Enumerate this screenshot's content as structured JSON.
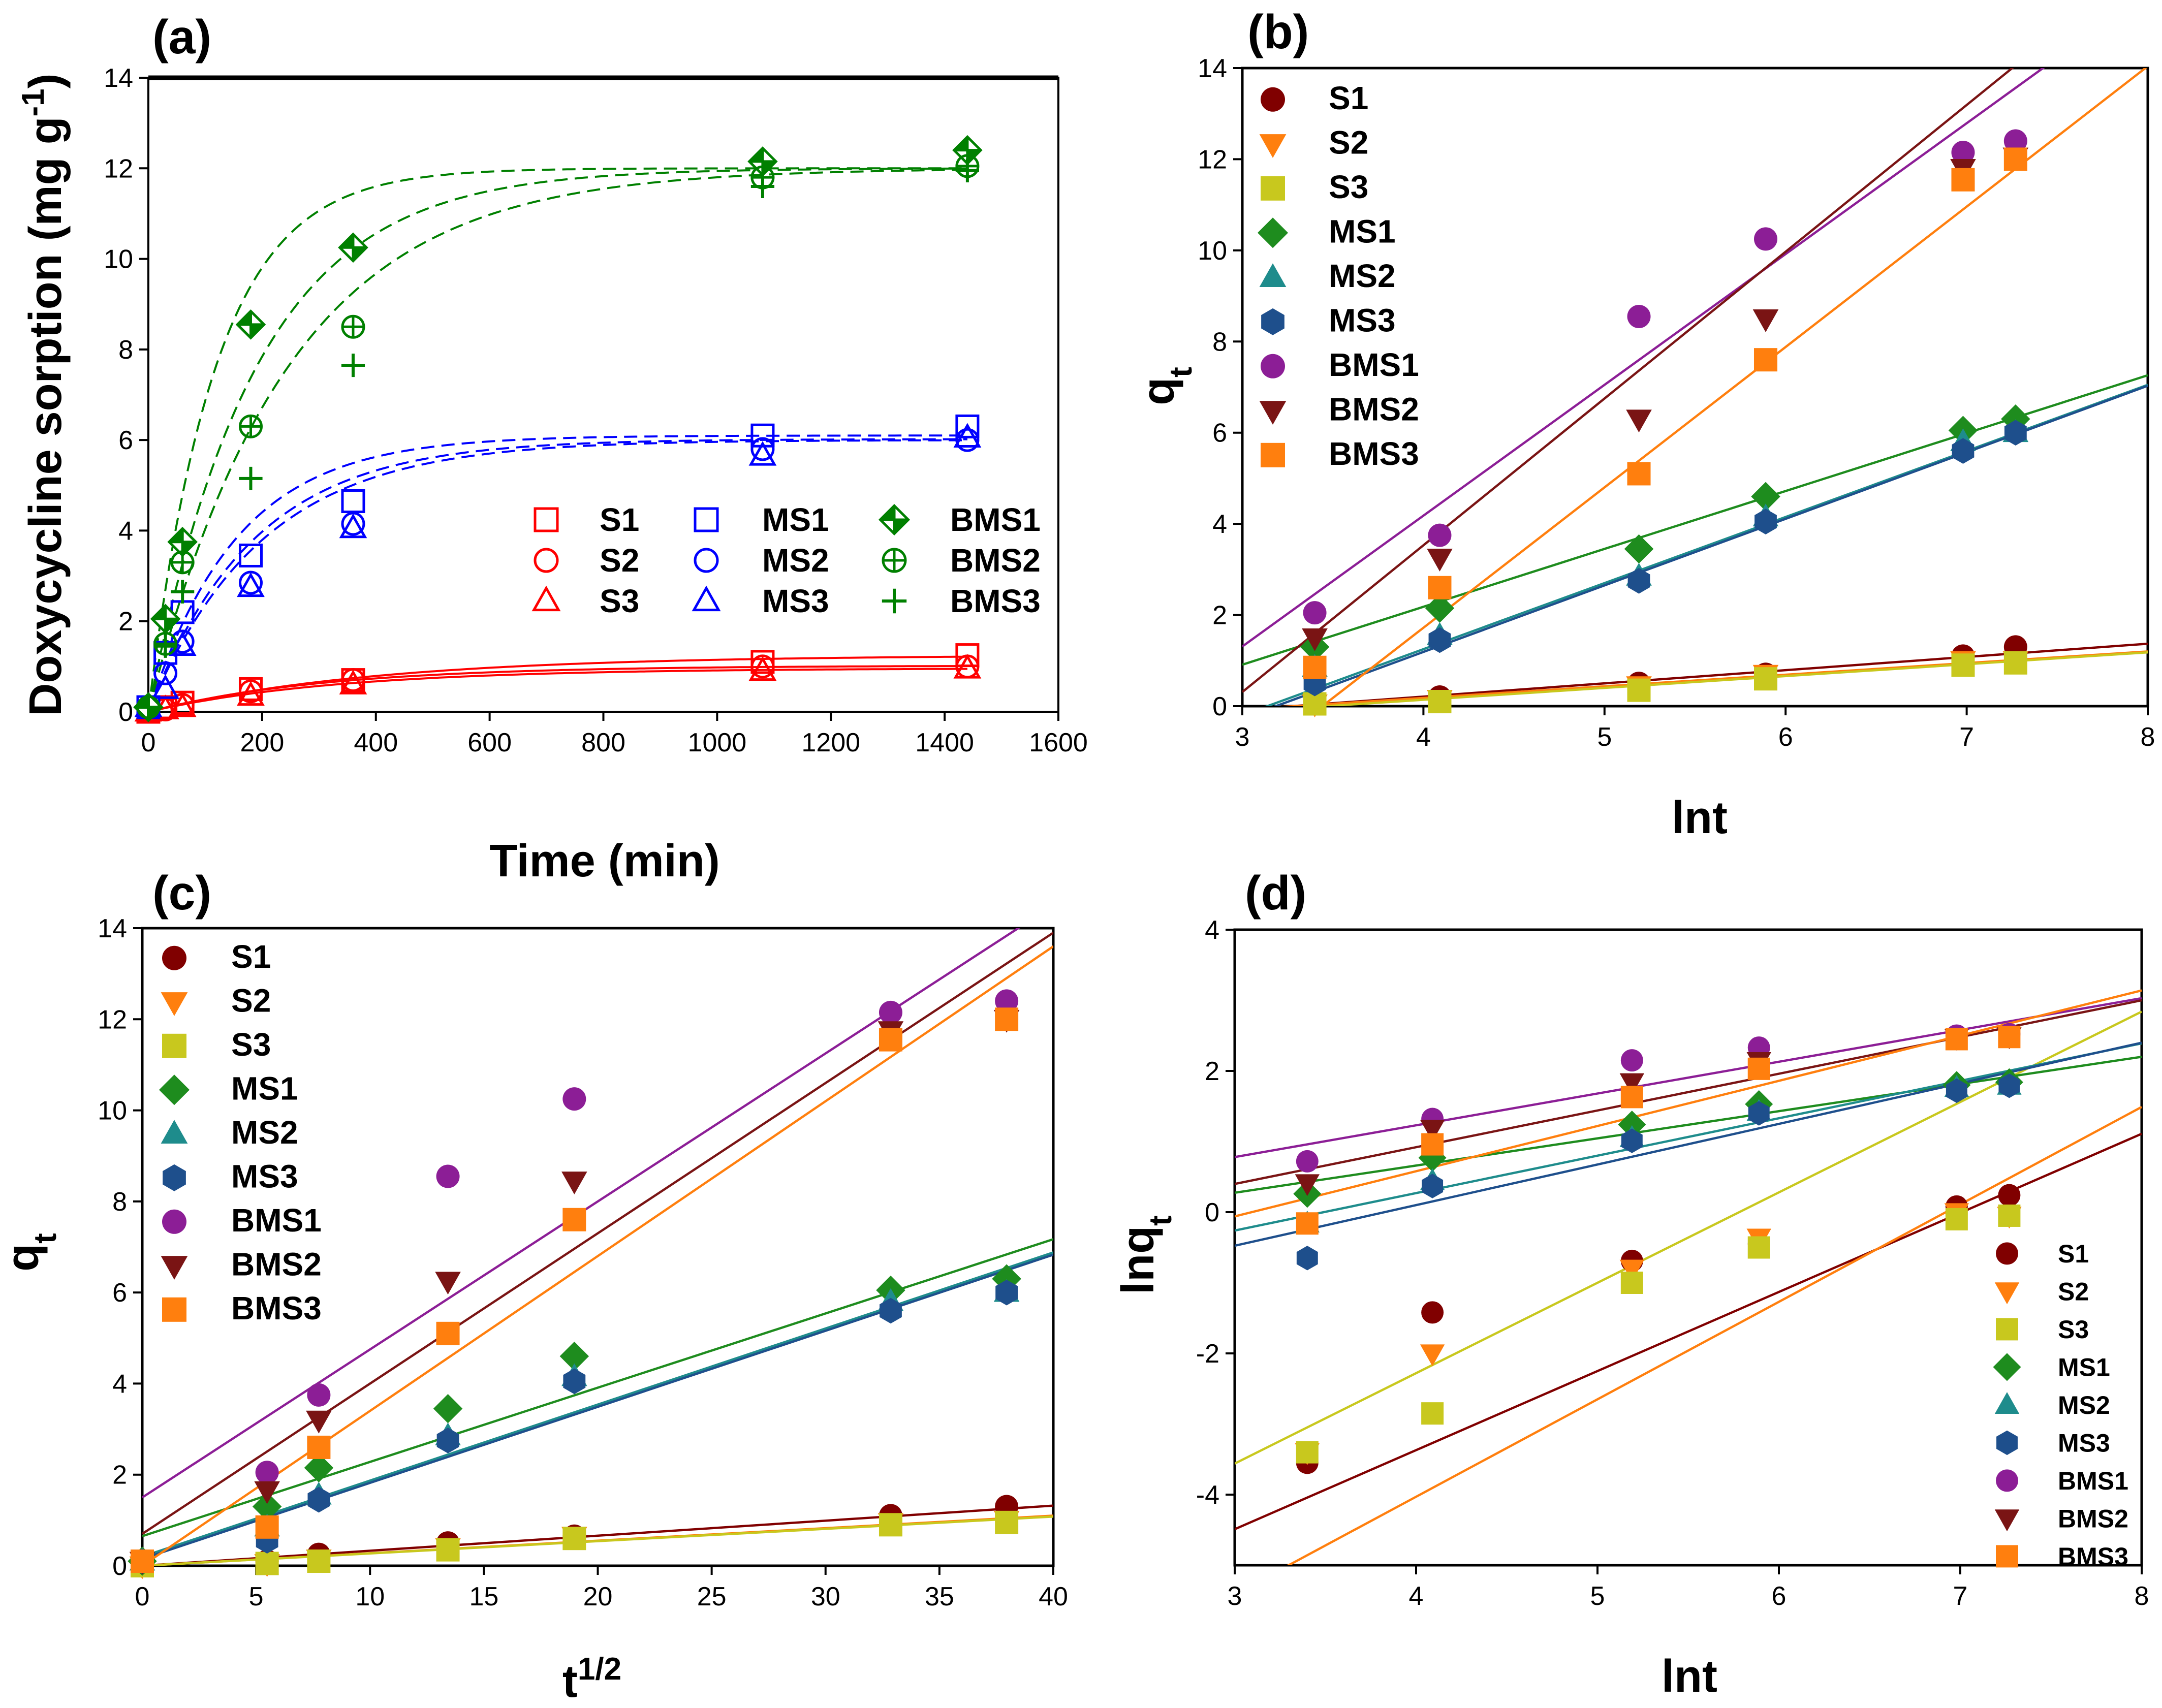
{
  "colors": {
    "S1": "#800000",
    "S2": "#ff7f0e",
    "S3": "#c8c81e",
    "MS1": "#1e8c1e",
    "MS2": "#1e8c8c",
    "MS3": "#1e4f8c",
    "BMS1": "#8c1e96",
    "BMS2": "#7a1414",
    "BMS3": "#ff7f0e",
    "red": "#ff0000",
    "blue": "#0000ff",
    "green": "#008000"
  },
  "chart_data": [
    {
      "panel": "(a)",
      "type": "scatter",
      "xlabel": "Time (min)",
      "ylabel_main": "Doxycycline sorption (mg g",
      "ylabel_sup": "-1",
      "ylabel_end": ")",
      "xlim": [
        0,
        1600
      ],
      "ylim": [
        0,
        14
      ],
      "xticks": [
        0,
        200,
        400,
        600,
        800,
        1000,
        1200,
        1400,
        1600
      ],
      "yticks": [
        0,
        2,
        4,
        6,
        8,
        10,
        12,
        14
      ],
      "legend_position": "lower-right",
      "x": [
        0,
        30,
        60,
        180,
        360,
        1080,
        1440
      ],
      "series": [
        {
          "name": "S1",
          "color": "red",
          "marker": "square",
          "values": [
            0.0,
            0.1,
            0.2,
            0.5,
            0.7,
            1.1,
            1.25
          ],
          "fit": {
            "qe": 1.25,
            "k": 0.0025
          }
        },
        {
          "name": "S2",
          "color": "red",
          "marker": "circle",
          "values": [
            0.0,
            0.05,
            0.15,
            0.45,
            0.7,
            1.0,
            1.0
          ],
          "fit": {
            "qe": 1.02,
            "k": 0.0032
          }
        },
        {
          "name": "S3",
          "color": "red",
          "marker": "triangle",
          "values": [
            0.0,
            0.05,
            0.1,
            0.35,
            0.6,
            0.9,
            0.95
          ],
          "fit": {
            "qe": 0.96,
            "k": 0.003
          }
        },
        {
          "name": "MS1",
          "color": "blue",
          "marker": "square",
          "values": [
            0.1,
            1.3,
            2.2,
            3.45,
            4.65,
            6.1,
            6.3
          ],
          "fit": {
            "qe": 6.1,
            "k": 0.0064
          }
        },
        {
          "name": "MS2",
          "color": "blue",
          "marker": "circle",
          "values": [
            0.1,
            0.85,
            1.55,
            2.85,
            4.15,
            5.8,
            6.0
          ],
          "fit": {
            "qe": 6.02,
            "k": 0.0054
          }
        },
        {
          "name": "MS3",
          "color": "blue",
          "marker": "triangle",
          "values": [
            0.1,
            0.5,
            1.45,
            2.75,
            4.05,
            5.65,
            6.05
          ],
          "fit": {
            "qe": 6.0,
            "k": 0.005
          }
        },
        {
          "name": "BMS1",
          "color": "green",
          "marker": "diamond",
          "values": [
            0.1,
            2.05,
            3.75,
            8.55,
            10.25,
            12.15,
            12.4
          ],
          "fit": {
            "qe": 12.0,
            "k": 0.0085
          }
        },
        {
          "name": "BMS2",
          "color": "green",
          "marker": "circlecross",
          "values": [
            0.1,
            1.5,
            3.3,
            6.3,
            8.5,
            11.8,
            12.05
          ],
          "fit": {
            "qe": 12.0,
            "k": 0.0053
          }
        },
        {
          "name": "BMS3",
          "color": "green",
          "marker": "plus",
          "values": [
            0.1,
            1.45,
            2.65,
            5.15,
            7.65,
            11.6,
            11.95
          ],
          "fit": {
            "qe": 12.0,
            "k": 0.0041
          }
        }
      ]
    },
    {
      "panel": "(b)",
      "type": "scatter",
      "xlabel": "lnt",
      "ylabel_main": "q",
      "ylabel_sub": "t",
      "xlim": [
        3,
        8
      ],
      "ylim": [
        0,
        14
      ],
      "xticks": [
        3,
        4,
        5,
        6,
        7,
        8
      ],
      "yticks": [
        0,
        2,
        4,
        6,
        8,
        10,
        12,
        14
      ],
      "legend_position": "top-left",
      "x": [
        3.4,
        4.09,
        5.19,
        5.89,
        6.98,
        7.27
      ],
      "series": [
        {
          "name": "S1",
          "color": "S1",
          "marker": "circle",
          "values": [
            0.1,
            0.2,
            0.5,
            0.7,
            1.1,
            1.3
          ],
          "fit": [
            -0.95,
            0.29
          ]
        },
        {
          "name": "S2",
          "color": "S2",
          "marker": "tridown",
          "values": [
            0.05,
            0.15,
            0.45,
            0.7,
            1.0,
            1.0
          ],
          "fit": [
            -0.84,
            0.255
          ]
        },
        {
          "name": "S3",
          "color": "S3",
          "marker": "square",
          "values": [
            0.05,
            0.1,
            0.35,
            0.6,
            0.9,
            0.95
          ],
          "fit": [
            -0.9,
            0.26
          ]
        },
        {
          "name": "MS1",
          "color": "MS1",
          "marker": "diamond",
          "values": [
            1.3,
            2.15,
            3.45,
            4.6,
            6.05,
            6.3
          ],
          "fit": [
            -2.9,
            1.27
          ]
        },
        {
          "name": "MS2",
          "color": "MS2",
          "marker": "triangle",
          "values": [
            0.85,
            1.55,
            2.85,
            4.15,
            5.8,
            6.0
          ],
          "fit": [
            -4.55,
            1.45
          ]
        },
        {
          "name": "MS3",
          "color": "MS3",
          "marker": "hexagon",
          "values": [
            0.5,
            1.45,
            2.75,
            4.05,
            5.6,
            6.0
          ],
          "fit": [
            -4.65,
            1.46
          ]
        },
        {
          "name": "BMS1",
          "color": "BMS1",
          "marker": "circle",
          "values": [
            2.05,
            3.75,
            8.55,
            10.25,
            12.15,
            12.4
          ],
          "fit": [
            -7.3,
            2.87
          ]
        },
        {
          "name": "BMS2",
          "color": "BMS2",
          "marker": "tridown",
          "values": [
            1.5,
            3.25,
            6.3,
            8.5,
            11.8,
            12.05
          ],
          "fit": [
            -9.35,
            3.22
          ]
        },
        {
          "name": "BMS3",
          "color": "BMS3",
          "marker": "square",
          "values": [
            0.85,
            2.6,
            5.1,
            7.6,
            11.55,
            12.0
          ],
          "fit": [
            -10.6,
            3.08
          ]
        }
      ]
    },
    {
      "panel": "(c)",
      "type": "scatter",
      "xlabel_main": "t",
      "xlabel_sup": "1/2",
      "ylabel_main": "q",
      "ylabel_sub": "t",
      "xlim": [
        0,
        40
      ],
      "ylim": [
        0,
        14
      ],
      "xticks": [
        0,
        5,
        10,
        15,
        20,
        25,
        30,
        35,
        40
      ],
      "yticks": [
        0,
        2,
        4,
        6,
        8,
        10,
        12,
        14
      ],
      "legend_position": "top-left",
      "x": [
        0,
        5.48,
        7.75,
        13.42,
        18.97,
        32.86,
        37.95
      ],
      "series": [
        {
          "name": "S1",
          "color": "S1",
          "marker": "circle",
          "values": [
            0.0,
            0.1,
            0.25,
            0.5,
            0.65,
            1.1,
            1.3
          ],
          "fit": [
            0.0,
            0.033
          ]
        },
        {
          "name": "S2",
          "color": "S2",
          "marker": "tridown",
          "values": [
            0.0,
            0.05,
            0.15,
            0.4,
            0.65,
            0.95,
            1.0
          ],
          "fit": [
            0.0,
            0.0275
          ]
        },
        {
          "name": "S3",
          "color": "S3",
          "marker": "square",
          "values": [
            0.0,
            0.05,
            0.1,
            0.35,
            0.6,
            0.9,
            0.95
          ],
          "fit": [
            0.0,
            0.027
          ]
        },
        {
          "name": "MS1",
          "color": "MS1",
          "marker": "diamond",
          "values": [
            0.1,
            1.3,
            2.15,
            3.45,
            4.6,
            6.05,
            6.3
          ],
          "fit": [
            0.65,
            0.163
          ]
        },
        {
          "name": "MS2",
          "color": "MS2",
          "marker": "triangle",
          "values": [
            0.1,
            0.85,
            1.55,
            2.85,
            4.15,
            5.8,
            6.0
          ],
          "fit": [
            0.2,
            0.167
          ]
        },
        {
          "name": "MS3",
          "color": "MS3",
          "marker": "hexagon",
          "values": [
            0.1,
            0.55,
            1.45,
            2.75,
            4.05,
            5.6,
            6.0
          ],
          "fit": [
            0.15,
            0.167
          ]
        },
        {
          "name": "BMS1",
          "color": "BMS1",
          "marker": "circle",
          "values": [
            0.1,
            2.05,
            3.75,
            8.55,
            10.25,
            12.15,
            12.4
          ],
          "fit": [
            1.5,
            0.325
          ]
        },
        {
          "name": "BMS2",
          "color": "BMS2",
          "marker": "tridown",
          "values": [
            0.1,
            1.65,
            3.2,
            6.25,
            8.45,
            11.75,
            12.0
          ],
          "fit": [
            0.7,
            0.33
          ]
        },
        {
          "name": "BMS3",
          "color": "BMS3",
          "marker": "square",
          "values": [
            0.1,
            0.85,
            2.6,
            5.1,
            7.6,
            11.55,
            12.0
          ],
          "fit": [
            0.0,
            0.34
          ]
        }
      ]
    },
    {
      "panel": "(d)",
      "type": "scatter",
      "xlabel": "lnt",
      "ylabel_main": "lnq",
      "ylabel_sub": "t",
      "xlim": [
        3,
        8
      ],
      "ylim": [
        -5,
        4
      ],
      "xticks": [
        3,
        4,
        5,
        6,
        7,
        8
      ],
      "yticks": [
        -4,
        -2,
        0,
        2,
        4
      ],
      "legend_position": "lower-right",
      "x": [
        3.4,
        4.09,
        5.19,
        5.89,
        6.98,
        7.27
      ],
      "series": [
        {
          "name": "S1",
          "color": "S1",
          "marker": "circle",
          "values": [
            -3.55,
            -1.42,
            -0.69,
            -0.45,
            0.08,
            0.24
          ],
          "fit": [
            -7.85,
            1.12
          ]
        },
        {
          "name": "S2",
          "color": "S2",
          "marker": "tridown",
          "values": [
            -3.4,
            -2.0,
            -0.8,
            -0.36,
            0.0,
            -0.05
          ],
          "fit": [
            -9.55,
            1.38
          ]
        },
        {
          "name": "S3",
          "color": "S3",
          "marker": "square",
          "values": [
            -3.4,
            -2.85,
            -1.0,
            -0.5,
            -0.1,
            -0.05
          ],
          "fit": [
            -7.4,
            1.28
          ]
        },
        {
          "name": "MS1",
          "color": "MS1",
          "marker": "diamond",
          "values": [
            0.26,
            0.77,
            1.24,
            1.53,
            1.8,
            1.84
          ],
          "fit": [
            -0.88,
            0.385
          ]
        },
        {
          "name": "MS2",
          "color": "MS2",
          "marker": "triangle",
          "values": [
            -0.16,
            0.44,
            1.05,
            1.42,
            1.76,
            1.79
          ],
          "fit": [
            -1.85,
            0.53
          ]
        },
        {
          "name": "MS3",
          "color": "MS3",
          "marker": "hexagon",
          "values": [
            -0.65,
            0.37,
            1.01,
            1.4,
            1.72,
            1.79
          ],
          "fit": [
            -2.2,
            0.575
          ]
        },
        {
          "name": "BMS1",
          "color": "BMS1",
          "marker": "circle",
          "values": [
            0.72,
            1.32,
            2.15,
            2.33,
            2.5,
            2.52
          ],
          "fit": [
            -0.57,
            0.45
          ]
        },
        {
          "name": "BMS2",
          "color": "BMS2",
          "marker": "tridown",
          "values": [
            0.41,
            1.18,
            1.84,
            2.14,
            2.47,
            2.49
          ],
          "fit": [
            -1.16,
            0.52
          ]
        },
        {
          "name": "BMS3",
          "color": "BMS3",
          "marker": "square",
          "values": [
            -0.16,
            0.96,
            1.63,
            2.03,
            2.45,
            2.48
          ],
          "fit": [
            -1.98,
            0.64
          ]
        }
      ]
    }
  ]
}
